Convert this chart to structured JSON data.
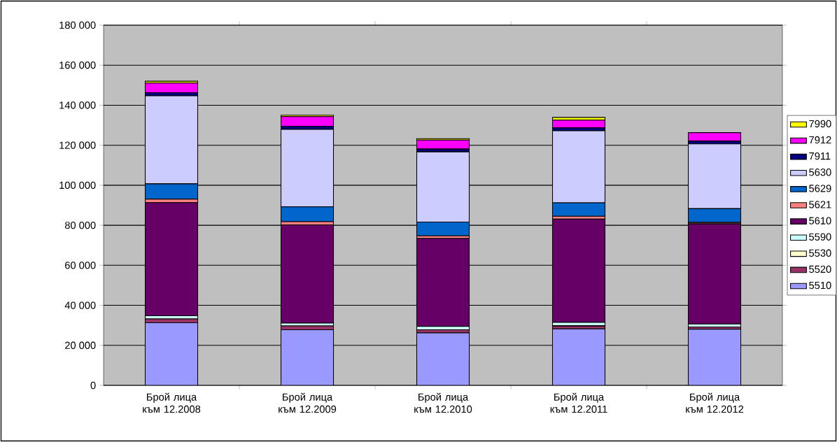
{
  "chart_data": {
    "type": "bar",
    "stacked": true,
    "categories": [
      "Брой лица към 12.2008",
      "Брой лица към 12.2009",
      "Брой лица към 12.2010",
      "Брой лица към 12.2011",
      "Брой лица към 12.2012"
    ],
    "series": [
      {
        "name": "5510",
        "color": "#9999ff",
        "values": [
          31300,
          27800,
          26200,
          28200,
          28100
        ]
      },
      {
        "name": "5520",
        "color": "#993366",
        "values": [
          1900,
          1900,
          1600,
          1400,
          1100
        ]
      },
      {
        "name": "5530",
        "color": "#ffffcc",
        "values": [
          null,
          null,
          null,
          300,
          null
        ]
      },
      {
        "name": "5590",
        "color": "#ccffff",
        "values": [
          1600,
          1400,
          1700,
          1600,
          1500
        ]
      },
      {
        "name": "5610",
        "color": "#660066",
        "values": [
          56500,
          49100,
          43900,
          51600,
          50000
        ]
      },
      {
        "name": "5621",
        "color": "#ff8080",
        "values": [
          1800,
          1600,
          1300,
          1400,
          700
        ]
      },
      {
        "name": "5629",
        "color": "#0066cc",
        "values": [
          7600,
          7400,
          6900,
          6700,
          6900
        ]
      },
      {
        "name": "5630",
        "color": "#ccccff",
        "values": [
          44000,
          38700,
          35100,
          36000,
          32400
        ]
      },
      {
        "name": "7911",
        "color": "#000080",
        "values": [
          1600,
          1500,
          1400,
          1500,
          1400
        ]
      },
      {
        "name": "7912",
        "color": "#ff00ff",
        "values": [
          4800,
          4900,
          4500,
          3900,
          4200
        ]
      },
      {
        "name": "7990",
        "color": "#ffff00",
        "values": [
          900,
          700,
          700,
          1300,
          null
        ]
      }
    ],
    "ylim": [
      0,
      180000
    ],
    "yticks": [
      {
        "value": 0,
        "label": "0"
      },
      {
        "value": 20000,
        "label": "20 000"
      },
      {
        "value": 40000,
        "label": "40 000"
      },
      {
        "value": 60000,
        "label": "60 000"
      },
      {
        "value": 80000,
        "label": "80 000"
      },
      {
        "value": 100000,
        "label": "100 000"
      },
      {
        "value": 120000,
        "label": "120 000"
      },
      {
        "value": 140000,
        "label": "140 000"
      },
      {
        "value": 160000,
        "label": "160 000"
      },
      {
        "value": 180000,
        "label": "180 000"
      }
    ],
    "grid": "y",
    "legend": "right"
  }
}
